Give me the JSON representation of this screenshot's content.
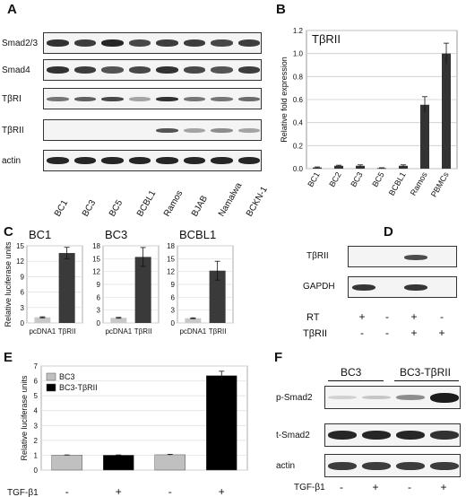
{
  "panelA": {
    "label": "A",
    "rows": [
      "Smad2/3",
      "Smad4",
      "TβRI",
      "TβRII",
      "actin"
    ],
    "lanes": [
      "BC1",
      "BC3",
      "BC5",
      "BCBL1",
      "Ramos",
      "BJAB",
      "Namalwa",
      "BCKN-1"
    ],
    "intensity": {
      "Smad2/3": [
        0.85,
        0.8,
        0.9,
        0.75,
        0.8,
        0.8,
        0.75,
        0.8
      ],
      "Smad4": [
        0.85,
        0.8,
        0.7,
        0.75,
        0.85,
        0.75,
        0.7,
        0.8
      ],
      "TβRI": [
        0.55,
        0.65,
        0.75,
        0.35,
        0.85,
        0.55,
        0.55,
        0.6
      ],
      "TβRII": [
        0.0,
        0.0,
        0.0,
        0.0,
        0.7,
        0.35,
        0.45,
        0.35
      ],
      "actin": [
        0.9,
        0.9,
        0.9,
        0.9,
        0.9,
        0.9,
        0.9,
        0.9
      ]
    }
  },
  "panelB": {
    "label": "B",
    "chart_data": {
      "type": "bar",
      "title": "TβRII",
      "ylabel": "Relative fold expression",
      "categories": [
        "BC1",
        "BC2",
        "BC3",
        "BC5",
        "BCBL1",
        "Ramos",
        "PBMCs"
      ],
      "values": [
        0.01,
        0.025,
        0.025,
        0.005,
        0.025,
        0.555,
        1.0
      ],
      "errors": [
        0.005,
        0.005,
        0.008,
        0.003,
        0.008,
        0.07,
        0.09
      ],
      "ylim": [
        0,
        1.2
      ],
      "yticks": [
        "0.0",
        "0.2",
        "0.4",
        "0.6",
        "0.8",
        "1.0",
        "1.2"
      ]
    }
  },
  "panelC": {
    "label": "C",
    "ylabel": "Relative luciferase units",
    "chart_data": [
      {
        "type": "bar",
        "title": "BC1",
        "categories": [
          "pcDNA1",
          "TβRII"
        ],
        "values": [
          1.1,
          13.6
        ],
        "errors": [
          0.1,
          1.1
        ],
        "ylim": [
          0,
          15
        ],
        "yticks": [
          "0",
          "3",
          "6",
          "9",
          "12",
          "15"
        ]
      },
      {
        "type": "bar",
        "title": "BC3",
        "categories": [
          "pcDNA1",
          "TβRII"
        ],
        "values": [
          1.2,
          15.4
        ],
        "errors": [
          0.1,
          2.2
        ],
        "ylim": [
          0,
          18
        ],
        "yticks": [
          "0",
          "3",
          "6",
          "9",
          "12",
          "15",
          "18"
        ]
      },
      {
        "type": "bar",
        "title": "BCBL1",
        "categories": [
          "pcDNA1",
          "TβRII"
        ],
        "values": [
          1.1,
          12.2
        ],
        "errors": [
          0.1,
          2.2
        ],
        "ylim": [
          0,
          18
        ],
        "yticks": [
          "0",
          "3",
          "6",
          "9",
          "12",
          "15",
          "18"
        ]
      }
    ],
    "colors": {
      "ctrl": "#c8c8c8",
      "trt": "#3a3a3a"
    }
  },
  "panelD": {
    "label": "D",
    "rows": [
      "TβRII",
      "GAPDH"
    ],
    "conditions": [
      {
        "name": "RT",
        "values": [
          "+",
          "-",
          "+",
          "-"
        ]
      },
      {
        "name": "TβRII",
        "values": [
          "-",
          "-",
          "+",
          "+"
        ]
      }
    ]
  },
  "panelE": {
    "label": "E",
    "chart_data": {
      "type": "bar",
      "ylabel": "Relative luciferase units",
      "values": [
        1.0,
        1.0,
        1.03,
        6.35
      ],
      "errors": [
        0.02,
        0.02,
        0.03,
        0.3
      ],
      "colorKeys": [
        "BC3",
        "BC3-TβRII",
        "BC3",
        "BC3-TβRII"
      ],
      "legend": [
        "BC3",
        "BC3-TβRII"
      ],
      "ylim": [
        0,
        7
      ],
      "yticks": [
        "0",
        "1",
        "2",
        "3",
        "4",
        "5",
        "6",
        "7"
      ]
    },
    "colors": {
      "BC3": "#c0c0c0",
      "BC3-TβRII": "#000000"
    },
    "treatment_label": "TGF-β1",
    "treatment": [
      "-",
      "+",
      "-",
      "+"
    ]
  },
  "panelF": {
    "label": "F",
    "groups": [
      "BC3",
      "BC3-TβRII"
    ],
    "rows": [
      "p-Smad2",
      "t-Smad2",
      "actin"
    ],
    "treatment_label": "TGF-β1",
    "treatment": [
      "-",
      "+",
      "-",
      "+"
    ]
  }
}
